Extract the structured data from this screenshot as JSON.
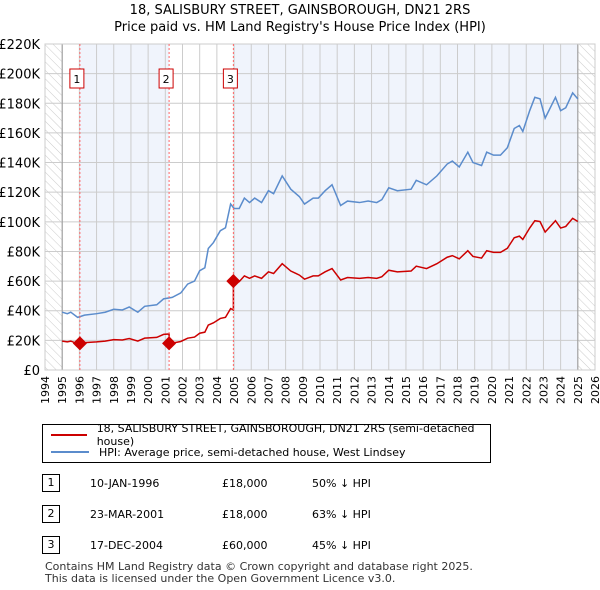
{
  "title": "18, SALISBURY STREET, GAINSBOROUGH, DN21 2RS",
  "subtitle": "Price paid vs. HM Land Registry's House Price Index (HPI)",
  "colors": {
    "property": "#cc0000",
    "hpi": "#5b8ccc",
    "shade": "#f0f4fc"
  },
  "chart_data": {
    "type": "line",
    "xlim": [
      1994,
      2026
    ],
    "ylim": [
      0,
      220000
    ],
    "x_ticks": [
      "1994",
      "1995",
      "1996",
      "1997",
      "1998",
      "1999",
      "2000",
      "2001",
      "2002",
      "2003",
      "2004",
      "2005",
      "2006",
      "2007",
      "2008",
      "2009",
      "2010",
      "2011",
      "2012",
      "2013",
      "2014",
      "2015",
      "2016",
      "2017",
      "2018",
      "2019",
      "2020",
      "2021",
      "2022",
      "2023",
      "2024",
      "2025",
      "2026"
    ],
    "y_ticks": [
      {
        "v": 0,
        "label": "£0"
      },
      {
        "v": 20000,
        "label": "£20K"
      },
      {
        "v": 40000,
        "label": "£40K"
      },
      {
        "v": 60000,
        "label": "£60K"
      },
      {
        "v": 80000,
        "label": "£80K"
      },
      {
        "v": 100000,
        "label": "£100K"
      },
      {
        "v": 120000,
        "label": "£120K"
      },
      {
        "v": 140000,
        "label": "£140K"
      },
      {
        "v": 160000,
        "label": "£160K"
      },
      {
        "v": 180000,
        "label": "£180K"
      },
      {
        "v": 200000,
        "label": "£200K"
      },
      {
        "v": 220000,
        "label": "£220K"
      }
    ],
    "hpi_series": [
      [
        1995.0,
        39
      ],
      [
        1995.3,
        38
      ],
      [
        1995.5,
        39
      ],
      [
        1995.9,
        35.5
      ],
      [
        1996.3,
        37
      ],
      [
        1997,
        38
      ],
      [
        1997.5,
        39
      ],
      [
        1998,
        41
      ],
      [
        1998.5,
        40.5
      ],
      [
        1998.9,
        42.5
      ],
      [
        1999.4,
        39
      ],
      [
        1999.8,
        43
      ],
      [
        2000.5,
        44
      ],
      [
        2000.9,
        48
      ],
      [
        2001.4,
        49
      ],
      [
        2001.9,
        52
      ],
      [
        2002.3,
        58
      ],
      [
        2002.7,
        60
      ],
      [
        2003.0,
        67
      ],
      [
        2003.3,
        69
      ],
      [
        2003.5,
        82
      ],
      [
        2003.8,
        86
      ],
      [
        2004.2,
        94
      ],
      [
        2004.5,
        96
      ],
      [
        2004.8,
        112
      ],
      [
        2005.0,
        109
      ],
      [
        2005.3,
        109
      ],
      [
        2005.6,
        116
      ],
      [
        2005.9,
        113
      ],
      [
        2006.2,
        116
      ],
      [
        2006.6,
        113
      ],
      [
        2007.0,
        121
      ],
      [
        2007.3,
        119
      ],
      [
        2007.8,
        131
      ],
      [
        2008.3,
        122
      ],
      [
        2008.6,
        119
      ],
      [
        2008.8,
        117
      ],
      [
        2009.1,
        112
      ],
      [
        2009.6,
        116
      ],
      [
        2009.9,
        116
      ],
      [
        2010.3,
        121
      ],
      [
        2010.7,
        125
      ],
      [
        2011.2,
        111
      ],
      [
        2011.6,
        114
      ],
      [
        2012.3,
        113
      ],
      [
        2012.8,
        114
      ],
      [
        2013.3,
        113
      ],
      [
        2013.6,
        115
      ],
      [
        2014.0,
        123
      ],
      [
        2014.5,
        121
      ],
      [
        2015.3,
        122
      ],
      [
        2015.6,
        128
      ],
      [
        2016.2,
        125
      ],
      [
        2016.8,
        131
      ],
      [
        2017.4,
        139
      ],
      [
        2017.7,
        141
      ],
      [
        2018.1,
        137
      ],
      [
        2018.6,
        147
      ],
      [
        2018.9,
        140
      ],
      [
        2019.4,
        138
      ],
      [
        2019.7,
        147
      ],
      [
        2020.1,
        145
      ],
      [
        2020.5,
        145
      ],
      [
        2020.9,
        150
      ],
      [
        2021.3,
        163
      ],
      [
        2021.6,
        165
      ],
      [
        2021.8,
        161
      ],
      [
        2022.2,
        175
      ],
      [
        2022.5,
        184
      ],
      [
        2022.8,
        183
      ],
      [
        2023.1,
        170
      ],
      [
        2023.7,
        184
      ],
      [
        2024.0,
        175
      ],
      [
        2024.3,
        177
      ],
      [
        2024.7,
        187
      ],
      [
        2025.0,
        183
      ]
    ],
    "hpi_units": "thousand GBP",
    "sales": [
      {
        "id": "1",
        "year": 1996.03,
        "price": 18000
      },
      {
        "id": "2",
        "year": 2001.22,
        "price": 18000
      },
      {
        "id": "3",
        "year": 2004.96,
        "price": 60000
      }
    ],
    "legend_position": "below"
  },
  "legend": {
    "property": "18, SALISBURY STREET, GAINSBOROUGH, DN21 2RS (semi-detached house)",
    "hpi": "HPI: Average price, semi-detached house, West Lindsey"
  },
  "transactions": [
    {
      "num": "1",
      "date": "10-JAN-1996",
      "price": "£18,000",
      "hpi": "50% ↓ HPI"
    },
    {
      "num": "2",
      "date": "23-MAR-2001",
      "price": "£18,000",
      "hpi": "63% ↓ HPI"
    },
    {
      "num": "3",
      "date": "17-DEC-2004",
      "price": "£60,000",
      "hpi": "45% ↓ HPI"
    }
  ],
  "footer": [
    "Contains HM Land Registry data © Crown copyright and database right 2025.",
    "This data is licensed under the Open Government Licence v3.0."
  ]
}
